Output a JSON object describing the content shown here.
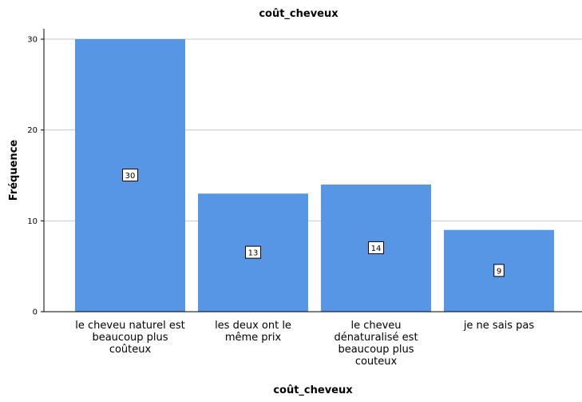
{
  "chart_data": {
    "type": "bar",
    "title": "coût_cheveux",
    "xlabel": "coût_cheveux",
    "ylabel": "Fréquence",
    "categories": [
      [
        "le cheveu naturel est",
        "beaucoup plus",
        "coûteux"
      ],
      [
        "les deux ont le",
        "même prix"
      ],
      [
        "le cheveu",
        "dénaturalisé est",
        "beaucoup plus",
        "couteux"
      ],
      [
        "je ne sais pas"
      ]
    ],
    "values": [
      30,
      13,
      14,
      9
    ],
    "data_labels": [
      "30",
      "13",
      "14",
      "9"
    ],
    "ylim": [
      0,
      30
    ],
    "yticks": [
      0,
      10,
      20,
      30
    ],
    "grid": true,
    "bar_color": "#5796e5",
    "gridline_color": "#c8c8c8"
  }
}
